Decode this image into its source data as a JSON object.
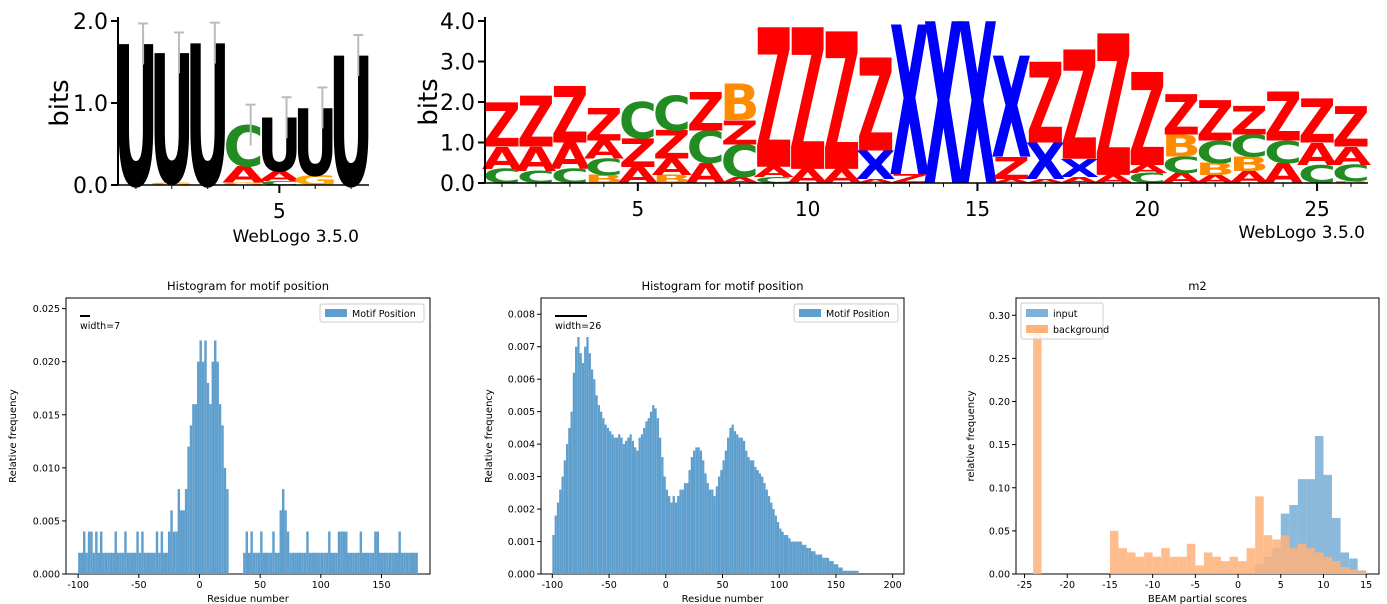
{
  "colors": {
    "Z": "#ff0000",
    "A": "#ff0000",
    "X": "#0000ff",
    "C": "#228b22",
    "B": "#ff8c00",
    "G": "#ffa500",
    "bar": "#5f9fce",
    "input": "#7eb1d8",
    "background": "#ffb27a"
  },
  "chart_data": [
    {
      "type": "sequence_logo",
      "ylabel": "bits",
      "yticks": [
        "0.0",
        "1.0",
        "2.0"
      ],
      "ylim": [
        0,
        2.0
      ],
      "xticks": [
        "5"
      ],
      "footer": "WebLogo 3.5.0",
      "columns": [
        {
          "pos": 1,
          "stack": [
            {
              "l": "U",
              "h": 1.72
            }
          ],
          "err": 0.25
        },
        {
          "pos": 2,
          "stack": [
            {
              "l": "G",
              "h": 0.03
            },
            {
              "l": "U",
              "h": 1.58
            }
          ],
          "err": 0.25
        },
        {
          "pos": 3,
          "stack": [
            {
              "l": "U",
              "h": 1.73
            }
          ],
          "err": 0.25
        },
        {
          "pos": 4,
          "stack": [
            {
              "l": "G",
              "h": 0.03
            },
            {
              "l": "A",
              "h": 0.2
            },
            {
              "l": "C",
              "h": 0.5
            }
          ],
          "err": 0.25
        },
        {
          "pos": 5,
          "stack": [
            {
              "l": "C",
              "h": 0.05
            },
            {
              "l": "A",
              "h": 0.12
            },
            {
              "l": "U",
              "h": 0.65
            }
          ],
          "err": 0.25
        },
        {
          "pos": 6,
          "stack": [
            {
              "l": "G",
              "h": 0.12
            },
            {
              "l": "U",
              "h": 0.82
            }
          ],
          "err": 0.25
        },
        {
          "pos": 7,
          "stack": [
            {
              "l": "U",
              "h": 1.58
            }
          ],
          "err": 0.25
        }
      ]
    },
    {
      "type": "sequence_logo",
      "ylabel": "bits",
      "yticks": [
        "0.0",
        "1.0",
        "2.0",
        "3.0",
        "4.0"
      ],
      "ylim": [
        0,
        4.0
      ],
      "xticks": [
        "5",
        "10",
        "15",
        "20",
        "25"
      ],
      "footer": "WebLogo 3.5.0",
      "columns": [
        {
          "pos": 1,
          "stack": [
            {
              "l": "C",
              "h": 0.35
            },
            {
              "l": "A",
              "h": 0.55
            },
            {
              "l": "Z",
              "h": 1.1
            }
          ]
        },
        {
          "pos": 2,
          "stack": [
            {
              "l": "C",
              "h": 0.3
            },
            {
              "l": "A",
              "h": 0.6
            },
            {
              "l": "Z",
              "h": 1.25
            }
          ]
        },
        {
          "pos": 3,
          "stack": [
            {
              "l": "C",
              "h": 0.35
            },
            {
              "l": "A",
              "h": 0.65
            },
            {
              "l": "Z",
              "h": 1.4
            }
          ]
        },
        {
          "pos": 4,
          "stack": [
            {
              "l": "B",
              "h": 0.2
            },
            {
              "l": "C",
              "h": 0.4
            },
            {
              "l": "A",
              "h": 0.45
            },
            {
              "l": "Z",
              "h": 0.8
            }
          ]
        },
        {
          "pos": 5,
          "stack": [
            {
              "l": "A",
              "h": 0.4
            },
            {
              "l": "Z",
              "h": 0.7
            },
            {
              "l": "C",
              "h": 0.9
            }
          ]
        },
        {
          "pos": 6,
          "stack": [
            {
              "l": "B",
              "h": 0.2
            },
            {
              "l": "A",
              "h": 0.4
            },
            {
              "l": "Z",
              "h": 0.7
            },
            {
              "l": "C",
              "h": 0.85
            }
          ]
        },
        {
          "pos": 7,
          "stack": [
            {
              "l": "A",
              "h": 0.5
            },
            {
              "l": "C",
              "h": 0.8
            },
            {
              "l": "Z",
              "h": 0.95
            }
          ]
        },
        {
          "pos": 8,
          "stack": [
            {
              "l": "A",
              "h": 0.15
            },
            {
              "l": "C",
              "h": 0.8
            },
            {
              "l": "Z",
              "h": 0.6
            },
            {
              "l": "B",
              "h": 0.9
            }
          ]
        },
        {
          "pos": 9,
          "stack": [
            {
              "l": "C",
              "h": 0.15
            },
            {
              "l": "A",
              "h": 0.25
            },
            {
              "l": "Z",
              "h": 3.45
            }
          ]
        },
        {
          "pos": 10,
          "stack": [
            {
              "l": "A",
              "h": 0.35
            },
            {
              "l": "Z",
              "h": 3.5
            }
          ]
        },
        {
          "pos": 11,
          "stack": [
            {
              "l": "A",
              "h": 0.35
            },
            {
              "l": "Z",
              "h": 3.4
            }
          ]
        },
        {
          "pos": 12,
          "stack": [
            {
              "l": "A",
              "h": 0.1
            },
            {
              "l": "X",
              "h": 0.7
            },
            {
              "l": "Z",
              "h": 2.3
            }
          ]
        },
        {
          "pos": 13,
          "stack": [
            {
              "l": "Z",
              "h": 0.22
            },
            {
              "l": "X",
              "h": 3.7
            }
          ]
        },
        {
          "pos": 14,
          "stack": [
            {
              "l": "X",
              "h": 4.0
            }
          ]
        },
        {
          "pos": 15,
          "stack": [
            {
              "l": "X",
              "h": 4.0
            }
          ]
        },
        {
          "pos": 16,
          "stack": [
            {
              "l": "A",
              "h": 0.1
            },
            {
              "l": "Z",
              "h": 0.55
            },
            {
              "l": "X",
              "h": 2.5
            }
          ]
        },
        {
          "pos": 17,
          "stack": [
            {
              "l": "A",
              "h": 0.1
            },
            {
              "l": "X",
              "h": 0.9
            },
            {
              "l": "Z",
              "h": 2.0
            }
          ]
        },
        {
          "pos": 18,
          "stack": [
            {
              "l": "A",
              "h": 0.15
            },
            {
              "l": "X",
              "h": 0.45
            },
            {
              "l": "Z",
              "h": 2.7
            }
          ]
        },
        {
          "pos": 19,
          "stack": [
            {
              "l": "A",
              "h": 0.2
            },
            {
              "l": "Z",
              "h": 3.5
            }
          ]
        },
        {
          "pos": 20,
          "stack": [
            {
              "l": "C",
              "h": 0.25
            },
            {
              "l": "A",
              "h": 0.2
            },
            {
              "l": "Z",
              "h": 2.3
            }
          ]
        },
        {
          "pos": 21,
          "stack": [
            {
              "l": "A",
              "h": 0.25
            },
            {
              "l": "C",
              "h": 0.4
            },
            {
              "l": "B",
              "h": 0.55
            },
            {
              "l": "Z",
              "h": 1.0
            }
          ]
        },
        {
          "pos": 22,
          "stack": [
            {
              "l": "A",
              "h": 0.2
            },
            {
              "l": "B",
              "h": 0.3
            },
            {
              "l": "C",
              "h": 0.55
            },
            {
              "l": "Z",
              "h": 1.0
            }
          ]
        },
        {
          "pos": 23,
          "stack": [
            {
              "l": "A",
              "h": 0.3
            },
            {
              "l": "B",
              "h": 0.35
            },
            {
              "l": "C",
              "h": 0.55
            },
            {
              "l": "Z",
              "h": 0.7
            }
          ]
        },
        {
          "pos": 24,
          "stack": [
            {
              "l": "A",
              "h": 0.5
            },
            {
              "l": "C",
              "h": 0.55
            },
            {
              "l": "Z",
              "h": 1.2
            }
          ]
        },
        {
          "pos": 25,
          "stack": [
            {
              "l": "C",
              "h": 0.45
            },
            {
              "l": "A",
              "h": 0.55
            },
            {
              "l": "Z",
              "h": 1.1
            }
          ]
        },
        {
          "pos": 26,
          "stack": [
            {
              "l": "B",
              "h": 0.05
            },
            {
              "l": "C",
              "h": 0.4
            },
            {
              "l": "A",
              "h": 0.45
            },
            {
              "l": "Z",
              "h": 1.0
            }
          ]
        }
      ]
    },
    {
      "type": "bar",
      "title": "Histogram for motif position",
      "xlabel": "Residue number",
      "ylabel": "Relative frequency",
      "legend": "Motif Position",
      "width_label": "width=7",
      "xlim": [
        -110,
        190
      ],
      "ylim": [
        0,
        0.026
      ],
      "xticks": [
        "-100",
        "-50",
        "0",
        "50",
        "100",
        "150"
      ],
      "yticks": [
        "0.000",
        "0.005",
        "0.010",
        "0.015",
        "0.020",
        "0.025"
      ],
      "bin_start": -100,
      "bin_width": 2,
      "values": [
        0.002,
        0.002,
        0.004,
        0.002,
        0.004,
        0.004,
        0.002,
        0.004,
        0.002,
        0.004,
        0.002,
        0.002,
        0.002,
        0.002,
        0.002,
        0.004,
        0.002,
        0.002,
        0.002,
        0.004,
        0.002,
        0.002,
        0.002,
        0.002,
        0.004,
        0.002,
        0.004,
        0.002,
        0.002,
        0.002,
        0.002,
        0.002,
        0.004,
        0.002,
        0.004,
        0.002,
        0.002,
        0.004,
        0.006,
        0.004,
        0.004,
        0.008,
        0.006,
        0.006,
        0.008,
        0.012,
        0.014,
        0.016,
        0.016,
        0.02,
        0.022,
        0.02,
        0.022,
        0.018,
        0.016,
        0.02,
        0.022,
        0.02,
        0.016,
        0.014,
        0.01,
        0.008,
        0,
        0,
        0,
        0,
        0,
        0,
        0.002,
        0.004,
        0.002,
        0.004,
        0.002,
        0.002,
        0.002,
        0.004,
        0.002,
        0.002,
        0.002,
        0.002,
        0.004,
        0.002,
        0.002,
        0.006,
        0.008,
        0.006,
        0.004,
        0.002,
        0.002,
        0.002,
        0.002,
        0.002,
        0.002,
        0.002,
        0.004,
        0.002,
        0.002,
        0.002,
        0.002,
        0.002,
        0.002,
        0.002,
        0.002,
        0.004,
        0.002,
        0.002,
        0.002,
        0.004,
        0.004,
        0.004,
        0.004,
        0.002,
        0.002,
        0.002,
        0.002,
        0.002,
        0.004,
        0.002,
        0.002,
        0.002,
        0.002,
        0.002,
        0.004,
        0.004,
        0.002,
        0.002,
        0.002,
        0.002,
        0.002,
        0.002,
        0.002,
        0.002,
        0.004,
        0.002,
        0.002,
        0.002,
        0.002,
        0.002,
        0.002,
        0.002
      ]
    },
    {
      "type": "bar",
      "title": "Histogram for motif position",
      "xlabel": "Residue number",
      "ylabel": "Relative frequency",
      "legend": "Motif Position",
      "width_label": "width=26",
      "xlim": [
        -110,
        210
      ],
      "ylim": [
        0,
        0.0085
      ],
      "xticks": [
        "-100",
        "-50",
        "0",
        "50",
        "100",
        "150",
        "200"
      ],
      "yticks": [
        "0.000",
        "0.001",
        "0.002",
        "0.003",
        "0.004",
        "0.005",
        "0.006",
        "0.007",
        "0.008"
      ],
      "bin_start": -100,
      "bin_width": 2,
      "values": [
        0.0012,
        0.0018,
        0.0022,
        0.0026,
        0.003,
        0.0035,
        0.004,
        0.0045,
        0.005,
        0.0062,
        0.007,
        0.0073,
        0.0068,
        0.0065,
        0.007,
        0.0073,
        0.0068,
        0.0063,
        0.006,
        0.0055,
        0.0052,
        0.005,
        0.0048,
        0.0046,
        0.0045,
        0.0044,
        0.0043,
        0.0042,
        0.0042,
        0.0043,
        0.0042,
        0.004,
        0.0041,
        0.0042,
        0.0043,
        0.0041,
        0.0039,
        0.0038,
        0.0042,
        0.0043,
        0.0045,
        0.0047,
        0.0048,
        0.005,
        0.0052,
        0.0051,
        0.0048,
        0.0042,
        0.0036,
        0.003,
        0.0026,
        0.0024,
        0.0022,
        0.0024,
        0.0022,
        0.0024,
        0.0026,
        0.0026,
        0.0028,
        0.0028,
        0.0032,
        0.0036,
        0.0038,
        0.0039,
        0.0039,
        0.0038,
        0.0035,
        0.0031,
        0.0028,
        0.0026,
        0.0026,
        0.0024,
        0.0027,
        0.003,
        0.0032,
        0.0035,
        0.0038,
        0.0042,
        0.0045,
        0.0046,
        0.0044,
        0.0043,
        0.0042,
        0.0042,
        0.0041,
        0.0038,
        0.0036,
        0.0035,
        0.0035,
        0.0033,
        0.0032,
        0.0031,
        0.003,
        0.0028,
        0.0026,
        0.0024,
        0.0022,
        0.002,
        0.0018,
        0.0016,
        0.0014,
        0.0013,
        0.0012,
        0.0012,
        0.0011,
        0.001,
        0.001,
        0.001,
        0.001,
        0.001,
        0.0009,
        0.0009,
        0.0008,
        0.0008,
        0.0007,
        0.0007,
        0.0006,
        0.0006,
        0.0006,
        0.0005,
        0.0005,
        0.0005,
        0.0004,
        0.0004,
        0.0003,
        0.0003,
        0.0002,
        0.0002,
        0.0001,
        0.0001,
        0.0001,
        0.0001,
        0.0001,
        0.0001,
        0.0001
      ]
    },
    {
      "type": "bar",
      "title": "m2",
      "xlabel": "BEAM partial scores",
      "ylabel": "relative frequency",
      "xlim": [
        -26,
        16.5
      ],
      "ylim": [
        0,
        0.32
      ],
      "xticks": [
        "-25",
        "-20",
        "-15",
        "-10",
        "-5",
        "0",
        "5",
        "10",
        "15"
      ],
      "yticks": [
        "0.00",
        "0.05",
        "0.10",
        "0.15",
        "0.20",
        "0.25",
        "0.30"
      ],
      "series": [
        {
          "name": "input",
          "bin_start": -24,
          "bin_width": 1,
          "values": [
            0,
            0,
            0,
            0,
            0,
            0,
            0,
            0,
            0,
            0,
            0,
            0,
            0,
            0,
            0,
            0,
            0,
            0,
            0,
            0,
            0,
            0,
            0,
            0,
            0,
            0,
            0.012,
            0.02,
            0.03,
            0.07,
            0.08,
            0.11,
            0.11,
            0.16,
            0.115,
            0.065,
            0.025,
            0.018,
            0.004
          ]
        },
        {
          "name": "background",
          "bin_start": -24,
          "bin_width": 1,
          "values": [
            0.28,
            0,
            0,
            0,
            0,
            0,
            0,
            0,
            0,
            0.05,
            0.03,
            0.025,
            0.02,
            0.025,
            0.02,
            0.03,
            0.02,
            0.02,
            0.035,
            0.01,
            0.025,
            0.02,
            0.015,
            0.02,
            0.015,
            0.03,
            0.09,
            0.045,
            0.04,
            0.045,
            0.03,
            0.035,
            0.03,
            0.025,
            0.02,
            0.015,
            0.008,
            0.005,
            0.003
          ]
        }
      ]
    }
  ]
}
